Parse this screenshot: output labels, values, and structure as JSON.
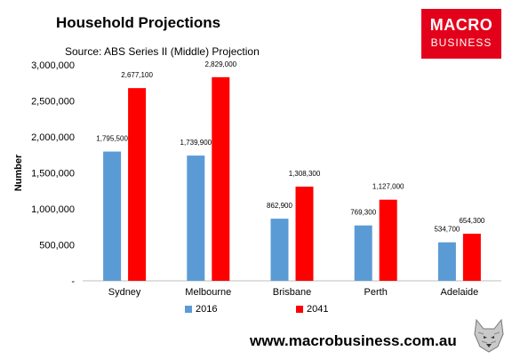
{
  "header": {
    "title": "Household Projections",
    "source": "Source: ABS Series II (Middle) Projection"
  },
  "logo": {
    "line1": "MACRO",
    "line2": "BUSINESS"
  },
  "footer": {
    "url": "www.macrobusiness.com.au"
  },
  "colors": {
    "s2016": "#5b9bd5",
    "s2041": "#ff0000",
    "brand": "#e3001b"
  },
  "chart_data": {
    "type": "bar",
    "title": "Household Projections",
    "xlabel": "",
    "ylabel": "Number",
    "categories": [
      "Sydney",
      "Melbourne",
      "Brisbane",
      "Perth",
      "Adelaide"
    ],
    "series": [
      {
        "name": "2016",
        "values": [
          1795500,
          1739900,
          862900,
          769300,
          534700
        ],
        "labels": [
          "1,795,500",
          "1,739,900",
          "862,900",
          "769,300",
          "534,700"
        ]
      },
      {
        "name": "2041",
        "values": [
          2677100,
          2829000,
          1308300,
          1127000,
          654300
        ],
        "labels": [
          "2,677,100",
          "2,829,000",
          "1,308,300",
          "1,127,000",
          "654,300"
        ]
      }
    ],
    "ylim": [
      0,
      3000000
    ],
    "yticks": [
      0,
      500000,
      1000000,
      1500000,
      2000000,
      2500000,
      3000000
    ],
    "ytick_labels": [
      "-",
      "500,000",
      "1,000,000",
      "1,500,000",
      "2,000,000",
      "2,500,000",
      "3,000,000"
    ],
    "grid": false,
    "legend_position": "bottom"
  }
}
